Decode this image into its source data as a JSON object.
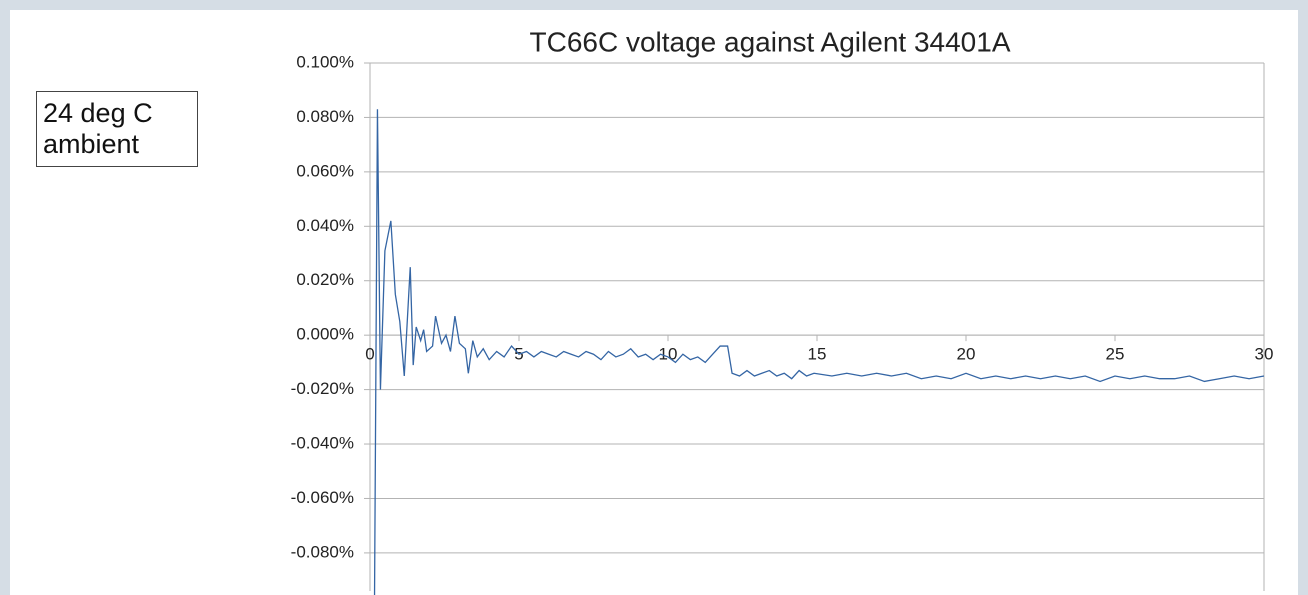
{
  "chart_data": {
    "type": "line",
    "title": "TC66C voltage against Agilent 34401A",
    "annotation": "24 deg C\nambient",
    "x": [
      0.15,
      0.25,
      0.35,
      0.5,
      0.7,
      0.85,
      1.0,
      1.15,
      1.35,
      1.45,
      1.55,
      1.7,
      1.8,
      1.9,
      2.1,
      2.2,
      2.4,
      2.55,
      2.7,
      2.85,
      3.0,
      3.2,
      3.3,
      3.45,
      3.6,
      3.8,
      4.0,
      4.25,
      4.5,
      4.75,
      5.0,
      5.25,
      5.5,
      5.75,
      6.0,
      6.25,
      6.5,
      6.75,
      7.0,
      7.25,
      7.5,
      7.75,
      8.0,
      8.25,
      8.5,
      8.75,
      9.0,
      9.25,
      9.5,
      9.75,
      10.0,
      10.25,
      10.5,
      10.75,
      11.0,
      11.25,
      11.5,
      11.75,
      12.0,
      12.15,
      12.4,
      12.65,
      12.9,
      13.15,
      13.4,
      13.65,
      13.9,
      14.15,
      14.4,
      14.65,
      14.9,
      15.5,
      16,
      16.5,
      17,
      17.5,
      18,
      18.5,
      19,
      19.5,
      20,
      20.5,
      21,
      21.5,
      22,
      22.5,
      23,
      23.5,
      24,
      24.5,
      25,
      25.5,
      26,
      26.5,
      27,
      27.5,
      28,
      28.5,
      29,
      29.5,
      30
    ],
    "series": [
      {
        "name": "TC66C",
        "color": "#3465a4",
        "values": [
          -0.1,
          0.083,
          -0.02,
          0.031,
          0.042,
          0.015,
          0.005,
          -0.015,
          0.025,
          -0.011,
          0.003,
          -0.002,
          0.002,
          -0.006,
          -0.004,
          0.007,
          -0.003,
          0.0,
          -0.006,
          0.007,
          -0.003,
          -0.005,
          -0.014,
          -0.002,
          -0.008,
          -0.005,
          -0.009,
          -0.006,
          -0.008,
          -0.004,
          -0.007,
          -0.006,
          -0.008,
          -0.006,
          -0.007,
          -0.008,
          -0.006,
          -0.007,
          -0.008,
          -0.006,
          -0.007,
          -0.009,
          -0.006,
          -0.008,
          -0.007,
          -0.005,
          -0.008,
          -0.007,
          -0.009,
          -0.007,
          -0.008,
          -0.01,
          -0.007,
          -0.009,
          -0.008,
          -0.01,
          -0.007,
          -0.004,
          -0.004,
          -0.014,
          -0.015,
          -0.013,
          -0.015,
          -0.014,
          -0.013,
          -0.015,
          -0.014,
          -0.016,
          -0.013,
          -0.015,
          -0.014,
          -0.015,
          -0.014,
          -0.015,
          -0.014,
          -0.015,
          -0.014,
          -0.016,
          -0.015,
          -0.016,
          -0.014,
          -0.016,
          -0.015,
          -0.016,
          -0.015,
          -0.016,
          -0.015,
          -0.016,
          -0.015,
          -0.017,
          -0.015,
          -0.016,
          -0.015,
          -0.016,
          -0.016,
          -0.015,
          -0.017,
          -0.016,
          -0.015,
          -0.016,
          -0.015
        ]
      }
    ],
    "xlim": [
      0,
      30
    ],
    "xticks": [
      0,
      5,
      10,
      15,
      20,
      25,
      30
    ],
    "ylim": [
      -0.094,
      0.1
    ],
    "yticks": [
      {
        "value": 0.1,
        "label": "0.100%"
      },
      {
        "value": 0.08,
        "label": "0.080%"
      },
      {
        "value": 0.06,
        "label": "0.060%"
      },
      {
        "value": 0.04,
        "label": "0.040%"
      },
      {
        "value": 0.02,
        "label": "0.020%"
      },
      {
        "value": 0,
        "label": "0.000%"
      },
      {
        "value": -0.02,
        "label": "-0.020%"
      },
      {
        "value": -0.04,
        "label": "-0.040%"
      },
      {
        "value": -0.06,
        "label": "-0.060%"
      },
      {
        "value": -0.08,
        "label": "-0.080%"
      }
    ],
    "grid": true
  }
}
